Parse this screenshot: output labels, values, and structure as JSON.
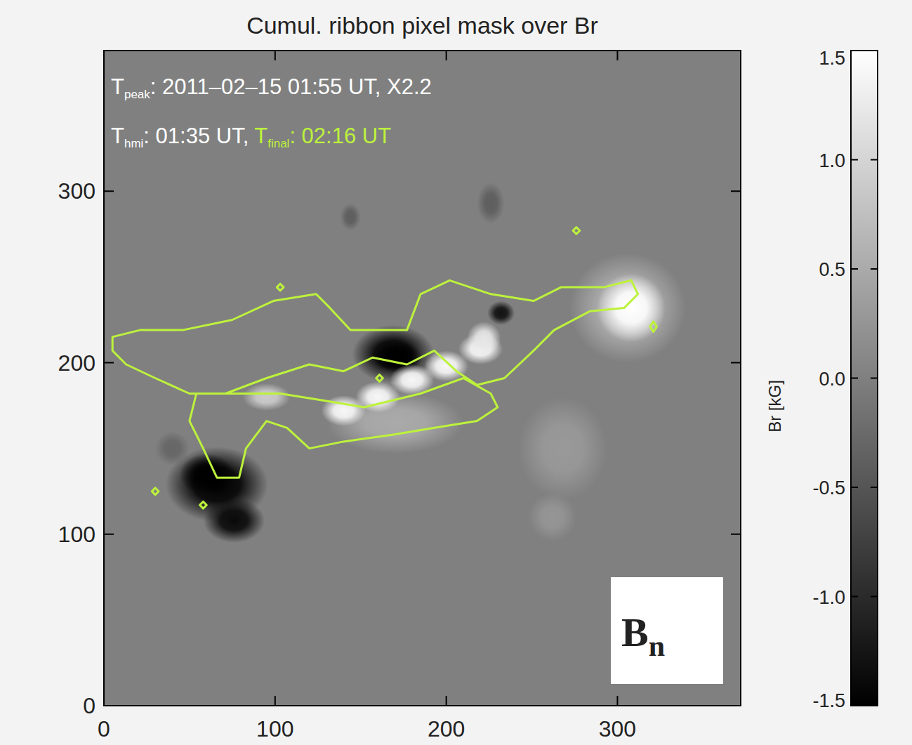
{
  "chart_data": {
    "type": "heatmap",
    "title": "Cumul. ribbon pixel mask over Br",
    "xlim": [
      0,
      372
    ],
    "ylim": [
      0,
      382
    ],
    "xticks": [
      0,
      100,
      200,
      300
    ],
    "yticks": [
      0,
      100,
      200,
      300
    ],
    "color": "#bdf23c",
    "annotations": [
      {
        "text": [
          "T",
          "peak",
          ": 2011–02–15 01:55 UT,  X2.2"
        ],
        "color": "#ffffff"
      },
      {
        "text": [
          "T",
          "hmi",
          ": 01:35 UT,"
        ],
        "color": "#ffffff"
      },
      {
        "text": [
          "T",
          "final",
          ": 02:16 UT"
        ],
        "color": "#bdf23c"
      }
    ],
    "panel_label": [
      "B",
      "n"
    ],
    "colorbar": {
      "label": "Br [kG]",
      "range": [
        -1.5,
        1.5
      ],
      "ticks": [
        -1.5,
        {
          "value": -1,
          "label": "-1.0"
        },
        -0.5,
        {
          "value": 0,
          "label": "0.0"
        },
        0.5,
        {
          "value": 1,
          "label": "1.0"
        },
        1.5
      ]
    },
    "sources": [
      {
        "x": 169,
        "y": 205,
        "radius_x": 24,
        "radius_y": 17,
        "value": -1.5
      },
      {
        "x": 172,
        "y": 203,
        "radius_x": 14,
        "radius_y": 9,
        "value": -1.5
      },
      {
        "x": 232,
        "y": 229,
        "radius_x": 8,
        "radius_y": 7,
        "value": -1.3
      },
      {
        "x": 66,
        "y": 129,
        "radius_x": 30,
        "radius_y": 22,
        "value": -1.5
      },
      {
        "x": 60,
        "y": 135,
        "radius_x": 16,
        "radius_y": 12,
        "value": -1.5
      },
      {
        "x": 76,
        "y": 108,
        "radius_x": 18,
        "radius_y": 13,
        "value": -1.4
      },
      {
        "x": 306,
        "y": 232,
        "radius_x": 34,
        "radius_y": 32,
        "value": 0.6
      },
      {
        "x": 308,
        "y": 232,
        "radius_x": 20,
        "radius_y": 20,
        "value": 1.5
      },
      {
        "x": 170,
        "y": 165,
        "radius_x": 40,
        "radius_y": 18,
        "value": 0.5
      },
      {
        "x": 140,
        "y": 172,
        "radius_x": 13,
        "radius_y": 9,
        "value": 1.4
      },
      {
        "x": 160,
        "y": 180,
        "radius_x": 13,
        "radius_y": 9,
        "value": 1.4
      },
      {
        "x": 180,
        "y": 190,
        "radius_x": 13,
        "radius_y": 9,
        "value": 1.4
      },
      {
        "x": 200,
        "y": 198,
        "radius_x": 13,
        "radius_y": 9,
        "value": 1.4
      },
      {
        "x": 220,
        "y": 208,
        "radius_x": 13,
        "radius_y": 9,
        "value": 1.4
      },
      {
        "x": 222,
        "y": 214,
        "radius_x": 10,
        "radius_y": 10,
        "value": 1.2
      },
      {
        "x": 95,
        "y": 180,
        "radius_x": 14,
        "radius_y": 8,
        "value": 0.9
      },
      {
        "x": 268,
        "y": 150,
        "radius_x": 26,
        "radius_y": 30,
        "value": 0.3
      },
      {
        "x": 262,
        "y": 110,
        "radius_x": 14,
        "radius_y": 14,
        "value": 0.25
      },
      {
        "x": 144,
        "y": 285,
        "radius_x": 6,
        "radius_y": 8,
        "value": -0.4
      },
      {
        "x": 226,
        "y": 293,
        "radius_x": 8,
        "radius_y": 12,
        "value": -0.4
      },
      {
        "x": 40,
        "y": 150,
        "radius_x": 10,
        "radius_y": 10,
        "value": -0.3
      }
    ],
    "contours": [
      {
        "x": [
          5,
          21,
          46,
          75,
          99,
          124,
          132,
          144,
          161,
          177,
          185,
          202,
          226,
          251,
          267,
          292,
          308,
          312,
          304,
          284,
          263,
          251,
          234,
          218,
          206,
          193,
          177,
          157,
          140,
          120,
          95,
          71,
          50,
          30,
          13,
          5
        ],
        "y": [
          215,
          219,
          219,
          225,
          236,
          240,
          232,
          219,
          219,
          219,
          240,
          248,
          240,
          236,
          244,
          244,
          248,
          240,
          232,
          230,
          219,
          207,
          191,
          187,
          195,
          207,
          199,
          203,
          195,
          199,
          191,
          182,
          182,
          191,
          199,
          207
        ]
      },
      {
        "x": [
          54,
          79,
          103,
          128,
          152,
          185,
          210,
          226,
          230,
          218,
          193,
          169,
          140,
          120,
          107,
          95,
          83,
          79,
          66,
          58,
          50
        ],
        "y": [
          182,
          182,
          182,
          178,
          174,
          182,
          191,
          182,
          174,
          166,
          162,
          158,
          154,
          150,
          162,
          166,
          150,
          133,
          133,
          150,
          166
        ]
      },
      {
        "x": [
          101,
          103,
          105,
          103
        ],
        "y": [
          244,
          246,
          244,
          242
        ]
      },
      {
        "x": [
          274,
          276,
          278,
          276
        ],
        "y": [
          277,
          279,
          277,
          275
        ]
      },
      {
        "x": [
          319,
          321,
          323,
          321
        ],
        "y": [
          221,
          224,
          221,
          218
        ]
      },
      {
        "x": [
          56,
          58,
          60,
          58
        ],
        "y": [
          117,
          119,
          117,
          115
        ]
      },
      {
        "x": [
          28,
          30,
          32,
          30
        ],
        "y": [
          125,
          127,
          125,
          123
        ]
      },
      {
        "x": [
          159,
          161,
          163,
          161
        ],
        "y": [
          191,
          193,
          191,
          189
        ]
      }
    ]
  }
}
